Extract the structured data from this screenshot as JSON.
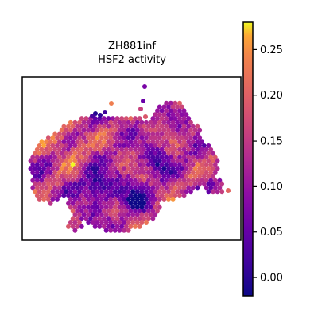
{
  "chart_data": {
    "type": "scatter",
    "subtype": "spatial-hexbin",
    "title_line1": "ZH881inf",
    "title_line2": "HSF2 activity",
    "xlabel": "",
    "ylabel": "",
    "grid": false,
    "colormap": "plasma",
    "colorbar": {
      "vmin": -0.02,
      "vmax": 0.28,
      "ticks": [
        0.0,
        0.05,
        0.1,
        0.15,
        0.2,
        0.25
      ],
      "tick_labels": [
        "0.00",
        "0.05",
        "0.10",
        "0.15",
        "0.20",
        "0.25"
      ],
      "placement": "right"
    },
    "spot_count_estimate": 900,
    "value_range_observed": [
      -0.01,
      0.27
    ]
  }
}
